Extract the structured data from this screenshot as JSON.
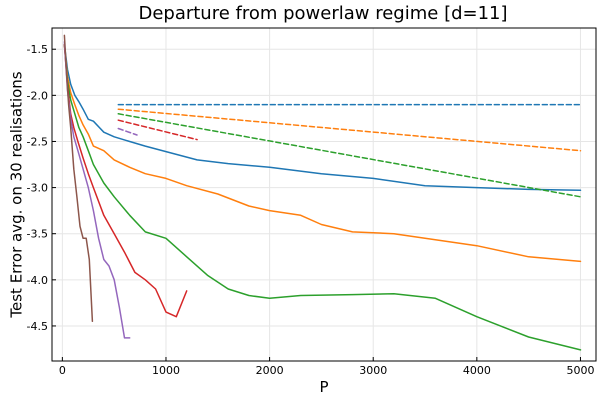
{
  "chart_data": {
    "type": "line",
    "title": "Departure from powerlaw regime [d=11]",
    "xlabel": "P",
    "ylabel": "Test Error avg. on 30 realisations",
    "xlim": [
      -100,
      5150
    ],
    "ylim": [
      -4.88,
      -1.27
    ],
    "xticks": [
      0,
      1000,
      2000,
      3000,
      4000,
      5000
    ],
    "xtick_labels": [
      "0",
      "1000",
      "2000",
      "3000",
      "4000",
      "5000"
    ],
    "yticks": [
      -1.5,
      -2.0,
      -2.5,
      -3.0,
      -3.5,
      -4.0,
      -4.5
    ],
    "ytick_labels": [
      "-1.5",
      "-2.0",
      "-2.5",
      "-3.0",
      "-3.5",
      "-4.0",
      "-4.5"
    ],
    "grid": true,
    "legend": "none",
    "series": [
      {
        "color": "#1f77b4",
        "style": "solid",
        "x": [
          20,
          50,
          80,
          120,
          160,
          200,
          250,
          300,
          400,
          500,
          650,
          800,
          1000,
          1300,
          1600,
          2000,
          2500,
          3000,
          3500,
          4000,
          4500,
          5000
        ],
        "y": [
          -1.45,
          -1.72,
          -1.88,
          -2.0,
          -2.07,
          -2.15,
          -2.26,
          -2.28,
          -2.4,
          -2.45,
          -2.5,
          -2.55,
          -2.61,
          -2.7,
          -2.74,
          -2.78,
          -2.85,
          -2.9,
          -2.98,
          -3.0,
          -3.02,
          -3.03
        ]
      },
      {
        "color": "#ff7f0e",
        "style": "solid",
        "x": [
          20,
          50,
          80,
          120,
          160,
          200,
          250,
          300,
          400,
          500,
          650,
          800,
          1000,
          1200,
          1500,
          1800,
          2000,
          2300,
          2500,
          2800,
          3200,
          3500,
          4000,
          4500,
          5000
        ],
        "y": [
          -1.45,
          -1.8,
          -1.97,
          -2.1,
          -2.22,
          -2.32,
          -2.42,
          -2.55,
          -2.6,
          -2.7,
          -2.78,
          -2.85,
          -2.9,
          -2.98,
          -3.07,
          -3.2,
          -3.25,
          -3.3,
          -3.4,
          -3.48,
          -3.5,
          -3.55,
          -3.63,
          -3.75,
          -3.8
        ]
      },
      {
        "color": "#2ca02c",
        "style": "solid",
        "x": [
          20,
          50,
          80,
          120,
          160,
          200,
          250,
          300,
          400,
          500,
          650,
          800,
          1000,
          1200,
          1400,
          1600,
          1800,
          2000,
          2300,
          2800,
          3200,
          3600,
          4000,
          4500,
          5000
        ],
        "y": [
          -1.45,
          -1.85,
          -2.05,
          -2.2,
          -2.35,
          -2.45,
          -2.6,
          -2.75,
          -2.95,
          -3.1,
          -3.3,
          -3.48,
          -3.55,
          -3.75,
          -3.95,
          -4.1,
          -4.17,
          -4.2,
          -4.17,
          -4.16,
          -4.15,
          -4.2,
          -4.4,
          -4.62,
          -4.76
        ]
      },
      {
        "color": "#d62728",
        "style": "solid",
        "x": [
          20,
          50,
          80,
          110,
          150,
          200,
          250,
          300,
          400,
          500,
          600,
          700,
          800,
          900,
          1000,
          1100,
          1200
        ],
        "y": [
          -1.45,
          -1.9,
          -2.2,
          -2.35,
          -2.5,
          -2.68,
          -2.85,
          -3.0,
          -3.3,
          -3.5,
          -3.7,
          -3.92,
          -4.0,
          -4.1,
          -4.35,
          -4.4,
          -4.12
        ]
      },
      {
        "color": "#9467bd",
        "style": "solid",
        "x": [
          20,
          50,
          80,
          110,
          150,
          200,
          250,
          300,
          350,
          400,
          450,
          500,
          550,
          600,
          650
        ],
        "y": [
          -1.42,
          -1.95,
          -2.25,
          -2.45,
          -2.6,
          -2.8,
          -3.0,
          -3.25,
          -3.55,
          -3.78,
          -3.85,
          -4.0,
          -4.3,
          -4.63,
          -4.63
        ]
      },
      {
        "color": "#8c564b",
        "style": "solid",
        "x": [
          20,
          40,
          60,
          80,
          110,
          140,
          170,
          200,
          230,
          260,
          290
        ],
        "y": [
          -1.35,
          -1.75,
          -2.1,
          -2.35,
          -2.8,
          -3.1,
          -3.42,
          -3.55,
          -3.55,
          -3.78,
          -4.45
        ]
      },
      {
        "color": "#1f77b4",
        "style": "dashed",
        "x": [
          540,
          5000
        ],
        "y": [
          -2.1,
          -2.1
        ]
      },
      {
        "color": "#ff7f0e",
        "style": "dashed",
        "x": [
          540,
          5000
        ],
        "y": [
          -2.15,
          -2.6
        ]
      },
      {
        "color": "#2ca02c",
        "style": "dashed",
        "x": [
          540,
          5000
        ],
        "y": [
          -2.2,
          -3.1
        ]
      },
      {
        "color": "#d62728",
        "style": "dashed",
        "x": [
          540,
          1300
        ],
        "y": [
          -2.27,
          -2.48
        ]
      },
      {
        "color": "#9467bd",
        "style": "dashed",
        "x": [
          540,
          720
        ],
        "y": [
          -2.36,
          -2.43
        ]
      }
    ]
  }
}
